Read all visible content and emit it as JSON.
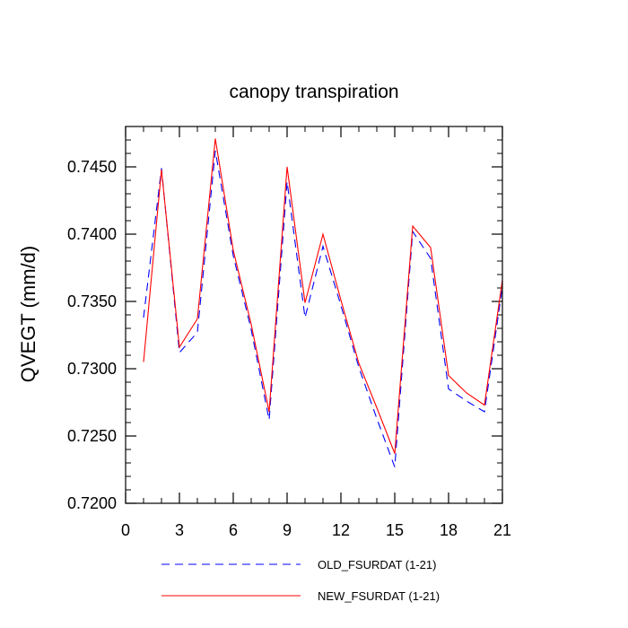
{
  "chart_data": {
    "type": "line",
    "title": "canopy transpiration",
    "xlabel": "",
    "ylabel": "QVEGT  (mm/d)",
    "xlim": [
      0,
      21
    ],
    "ylim": [
      0.72,
      0.748
    ],
    "x_ticks": [
      0,
      3,
      6,
      9,
      12,
      15,
      18,
      21
    ],
    "x_tick_labels": [
      "0",
      "3",
      "6",
      "9",
      "12",
      "15",
      "18",
      "21"
    ],
    "y_ticks": [
      0.72,
      0.725,
      0.73,
      0.735,
      0.74,
      0.745
    ],
    "y_tick_labels": [
      "0.7200",
      "0.7250",
      "0.7300",
      "0.7350",
      "0.7400",
      "0.7450"
    ],
    "legend_position": "bottom",
    "grid": false,
    "x": [
      1,
      2,
      3,
      4,
      5,
      6,
      7,
      8,
      9,
      10,
      11,
      12,
      13,
      14,
      15,
      16,
      17,
      18,
      19,
      20,
      21
    ],
    "series": [
      {
        "name": "OLD_FSURDAT (1-21)",
        "color": "#0000ff",
        "dash": "dashed",
        "values": [
          0.7338,
          0.7449,
          0.7312,
          0.7327,
          0.7462,
          0.7384,
          0.7329,
          0.7262,
          0.7439,
          0.7338,
          0.7391,
          0.7347,
          0.7301,
          0.7263,
          0.7227,
          0.7402,
          0.7382,
          0.7285,
          0.7276,
          0.7268,
          0.7361
        ]
      },
      {
        "name": "NEW_FSURDAT (1-21)",
        "color": "#ff0000",
        "dash": "solid",
        "values": [
          0.7305,
          0.7448,
          0.7316,
          0.7337,
          0.7471,
          0.7388,
          0.7333,
          0.7268,
          0.745,
          0.7349,
          0.74,
          0.7351,
          0.7304,
          0.7271,
          0.7237,
          0.7406,
          0.739,
          0.7295,
          0.7282,
          0.7273,
          0.7366
        ]
      }
    ]
  }
}
